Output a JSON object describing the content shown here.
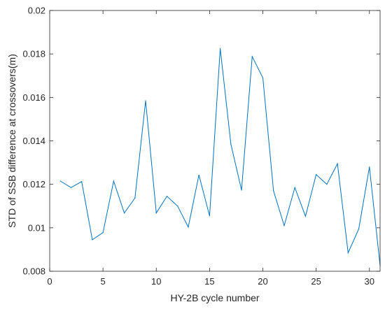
{
  "chart_data": {
    "type": "line",
    "title": "",
    "xlabel": "HY-2B cycle number",
    "ylabel": "STD of SSB difference at crossovers(m)",
    "xlim": [
      0,
      31
    ],
    "ylim": [
      0.008,
      0.02
    ],
    "xticks": [
      0,
      5,
      10,
      15,
      20,
      25,
      30
    ],
    "xtick_labels": [
      "0",
      "5",
      "10",
      "15",
      "20",
      "25",
      "30"
    ],
    "yticks": [
      0.008,
      0.01,
      0.012,
      0.014,
      0.016,
      0.018,
      0.02
    ],
    "ytick_labels": [
      "0.008",
      "0.01",
      "0.012",
      "0.014",
      "0.016",
      "0.018",
      "0.02"
    ],
    "grid": false,
    "box": true,
    "series": [
      {
        "color": "#0072BD",
        "x": [
          1,
          2,
          3,
          4,
          5,
          6,
          7,
          8,
          9,
          10,
          11,
          12,
          13,
          14,
          15,
          16,
          17,
          18,
          19,
          20,
          21,
          22,
          23,
          24,
          25,
          26,
          27,
          28,
          29,
          30,
          31
        ],
        "values": [
          0.01215,
          0.01185,
          0.01213,
          0.00945,
          0.00978,
          0.01215,
          0.01068,
          0.01137,
          0.01585,
          0.01068,
          0.01145,
          0.011,
          0.01003,
          0.01243,
          0.01055,
          0.01825,
          0.01385,
          0.01173,
          0.01788,
          0.0169,
          0.0117,
          0.0101,
          0.01185,
          0.01053,
          0.01245,
          0.012,
          0.01295,
          0.00885,
          0.00995,
          0.0128,
          0.00825
        ]
      }
    ]
  },
  "colors": {
    "axis": "#262626",
    "line": "#0072BD",
    "background": "#ffffff"
  }
}
